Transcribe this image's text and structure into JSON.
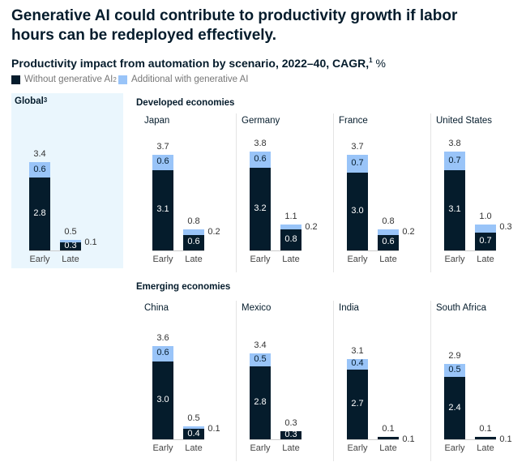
{
  "title": "Generative AI could contribute to productivity growth if labor hours can be redeployed effectively.",
  "chart_data": {
    "type": "bar",
    "stacked": true,
    "title": "Productivity impact from automation by scenario, 2022–40, CAGR,",
    "title_sup": "1",
    "title_unit": "%",
    "legend": [
      {
        "name": "Without generative AI",
        "sup": "2",
        "color": "#051c2c"
      },
      {
        "name": "Additional with generative AI",
        "color": "#99c4f8"
      }
    ],
    "categories": [
      "Early",
      "Late"
    ],
    "groups": [
      {
        "label": "Global",
        "sup": "3",
        "highlight_color": "#eaf6fd"
      },
      {
        "label": "Developed economies"
      },
      {
        "label": "Emerging economies"
      }
    ],
    "panels": [
      {
        "group": 0,
        "name": "Global",
        "early": {
          "base": 2.8,
          "add": 0.6,
          "total": 3.4
        },
        "late": {
          "base": 0.3,
          "add": 0.1,
          "total": 0.5
        }
      },
      {
        "group": 1,
        "name": "Japan",
        "early": {
          "base": 3.1,
          "add": 0.6,
          "total": 3.7
        },
        "late": {
          "base": 0.6,
          "add": 0.2,
          "total": 0.8
        }
      },
      {
        "group": 1,
        "name": "Germany",
        "early": {
          "base": 3.2,
          "add": 0.6,
          "total": 3.8
        },
        "late": {
          "base": 0.8,
          "add": 0.2,
          "total": 1.1
        }
      },
      {
        "group": 1,
        "name": "France",
        "early": {
          "base": 3.0,
          "add": 0.7,
          "total": 3.7
        },
        "late": {
          "base": 0.6,
          "add": 0.2,
          "total": 0.8
        }
      },
      {
        "group": 1,
        "name": "United States",
        "early": {
          "base": 3.1,
          "add": 0.7,
          "total": 3.8
        },
        "late": {
          "base": 0.7,
          "add": 0.3,
          "total": 1.0
        }
      },
      {
        "group": 2,
        "name": "China",
        "early": {
          "base": 3.0,
          "add": 0.6,
          "total": 3.6
        },
        "late": {
          "base": 0.4,
          "add": 0.1,
          "total": 0.5
        }
      },
      {
        "group": 2,
        "name": "Mexico",
        "early": {
          "base": 2.8,
          "add": 0.5,
          "total": 3.4
        },
        "late": {
          "base": 0.3,
          "add": null,
          "total": 0.3
        }
      },
      {
        "group": 2,
        "name": "India",
        "early": {
          "base": 2.7,
          "add": 0.4,
          "total": 3.1
        },
        "late": {
          "base": null,
          "add": 0.1,
          "total": 0.1
        }
      },
      {
        "group": 2,
        "name": "South Africa",
        "early": {
          "base": 2.4,
          "add": 0.5,
          "total": 2.9
        },
        "late": {
          "base": null,
          "add": 0.1,
          "total": 0.1
        }
      }
    ]
  }
}
